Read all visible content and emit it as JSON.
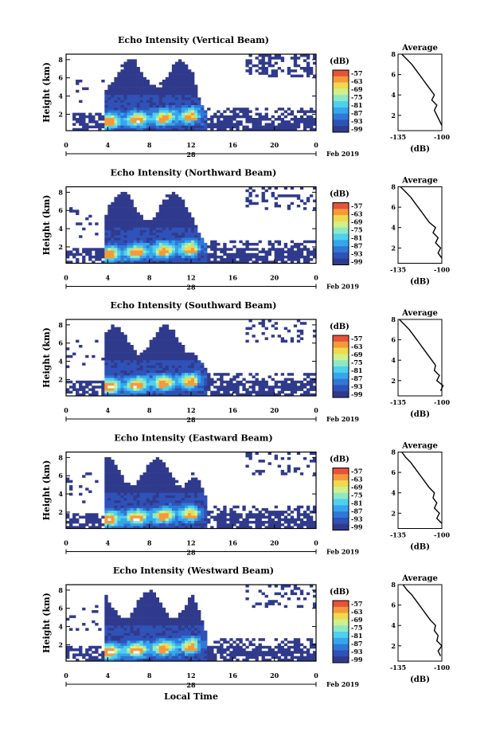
{
  "figure": {
    "xlabel_bottom": "Local Time",
    "date_label": "Feb 2019",
    "date_tick_label": "28",
    "colorbar_unit": "(dB)",
    "avg_title": "Average",
    "avg_xlabel": "(dB)",
    "colors": {
      "dark_blue": "#303a8c",
      "cmap": [
        "#303a8c",
        "#2f52b8",
        "#2f78d6",
        "#35a6ec",
        "#4fd0ee",
        "#8ee8c6",
        "#d0f08a",
        "#f2d84c",
        "#f59a3a",
        "#e8523a"
      ]
    }
  },
  "chart_data": [
    {
      "type": "heatmap",
      "title": "Echo Intensity (Vertical Beam)",
      "ylabel": "Height (km)",
      "xticks": [
        "0",
        "4",
        "8",
        "12",
        "16",
        "20",
        "0"
      ],
      "yticks": [
        "2",
        "4",
        "6",
        "8"
      ],
      "colorbar_ticks": [
        "-57",
        "-63",
        "-69",
        "-75",
        "-81",
        "-87",
        "-93",
        "-99"
      ],
      "avg_profile": {
        "xlabel": "(dB)",
        "xticks": [
          "-135",
          "-100"
        ],
        "yticks": [
          "2",
          "4",
          "6",
          "8"
        ],
        "height": [
          1.0,
          1.5,
          2.0,
          2.5,
          3.0,
          3.5,
          4.0,
          4.5,
          5.0,
          5.5,
          6.0,
          6.5,
          7.0,
          7.5,
          8.0
        ],
        "db": [
          -100,
          -102,
          -104,
          -106,
          -104,
          -108,
          -106,
          -109,
          -112,
          -115,
          -118,
          -121,
          -124,
          -128,
          -132
        ]
      }
    },
    {
      "type": "heatmap",
      "title": "Echo Intensity (Northward Beam)",
      "ylabel": "Height (km)",
      "xticks": [
        "0",
        "4",
        "8",
        "12",
        "16",
        "20",
        "0"
      ],
      "yticks": [
        "2",
        "4",
        "6",
        "8"
      ],
      "colorbar_ticks": [
        "-57",
        "-63",
        "-69",
        "-75",
        "-81",
        "-87",
        "-93",
        "-99"
      ],
      "avg_profile": {
        "xlabel": "(dB)",
        "xticks": [
          "-135",
          "-100"
        ],
        "yticks": [
          "2",
          "4",
          "6",
          "8"
        ],
        "height": [
          1.0,
          1.5,
          2.0,
          2.5,
          3.0,
          3.5,
          4.0,
          4.5,
          5.0,
          5.5,
          6.0,
          6.5,
          7.0,
          7.5,
          8.0
        ],
        "db": [
          -100,
          -103,
          -101,
          -105,
          -103,
          -107,
          -105,
          -110,
          -113,
          -116,
          -119,
          -122,
          -125,
          -129,
          -133
        ]
      }
    },
    {
      "type": "heatmap",
      "title": "Echo Intensity (Southward Beam)",
      "ylabel": "Height (km)",
      "xticks": [
        "0",
        "4",
        "8",
        "12",
        "16",
        "20",
        "0"
      ],
      "yticks": [
        "2",
        "4",
        "6",
        "8"
      ],
      "colorbar_ticks": [
        "-57",
        "-63",
        "-69",
        "-75",
        "-81",
        "-87",
        "-93",
        "-99"
      ],
      "avg_profile": {
        "xlabel": "(dB)",
        "xticks": [
          "-135",
          "-100"
        ],
        "yticks": [
          "2",
          "4",
          "6",
          "8"
        ],
        "height": [
          1.0,
          1.5,
          2.0,
          2.5,
          3.0,
          3.5,
          4.0,
          4.5,
          5.0,
          5.5,
          6.0,
          6.5,
          7.0,
          7.5,
          8.0
        ],
        "db": [
          -101,
          -99,
          -104,
          -102,
          -106,
          -105,
          -108,
          -111,
          -114,
          -117,
          -120,
          -123,
          -126,
          -130,
          -134
        ]
      }
    },
    {
      "type": "heatmap",
      "title": "Echo Intensity (Eastward Beam)",
      "ylabel": "Height (km)",
      "xticks": [
        "0",
        "4",
        "8",
        "12",
        "16",
        "20",
        "0"
      ],
      "yticks": [
        "2",
        "4",
        "6",
        "8"
      ],
      "colorbar_ticks": [
        "-57",
        "-63",
        "-69",
        "-75",
        "-81",
        "-87",
        "-93",
        "-99"
      ],
      "avg_profile": {
        "xlabel": "(dB)",
        "xticks": [
          "-135",
          "-100"
        ],
        "yticks": [
          "2",
          "4",
          "6",
          "8"
        ],
        "height": [
          1.0,
          1.5,
          2.0,
          2.5,
          3.0,
          3.5,
          4.0,
          4.5,
          5.0,
          5.5,
          6.0,
          6.5,
          7.0,
          7.5,
          8.0
        ],
        "db": [
          -100,
          -104,
          -102,
          -106,
          -104,
          -107,
          -106,
          -110,
          -113,
          -116,
          -119,
          -122,
          -125,
          -129,
          -132
        ]
      }
    },
    {
      "type": "heatmap",
      "title": "Echo Intensity (Westward Beam)",
      "ylabel": "Height (km)",
      "xticks": [
        "0",
        "4",
        "8",
        "12",
        "16",
        "20",
        "0"
      ],
      "yticks": [
        "2",
        "4",
        "6",
        "8"
      ],
      "colorbar_ticks": [
        "-57",
        "-63",
        "-69",
        "-75",
        "-81",
        "-87",
        "-93",
        "-99"
      ],
      "avg_profile": {
        "xlabel": "(dB)",
        "xticks": [
          "-135",
          "-100"
        ],
        "yticks": [
          "2",
          "4",
          "6",
          "8"
        ],
        "height": [
          1.0,
          1.5,
          2.0,
          2.5,
          3.0,
          3.5,
          4.0,
          4.5,
          5.0,
          5.5,
          6.0,
          6.5,
          7.0,
          7.5,
          8.0
        ],
        "db": [
          -101,
          -103,
          -100,
          -104,
          -103,
          -106,
          -105,
          -109,
          -112,
          -115,
          -118,
          -121,
          -124,
          -128,
          -131
        ]
      }
    }
  ]
}
